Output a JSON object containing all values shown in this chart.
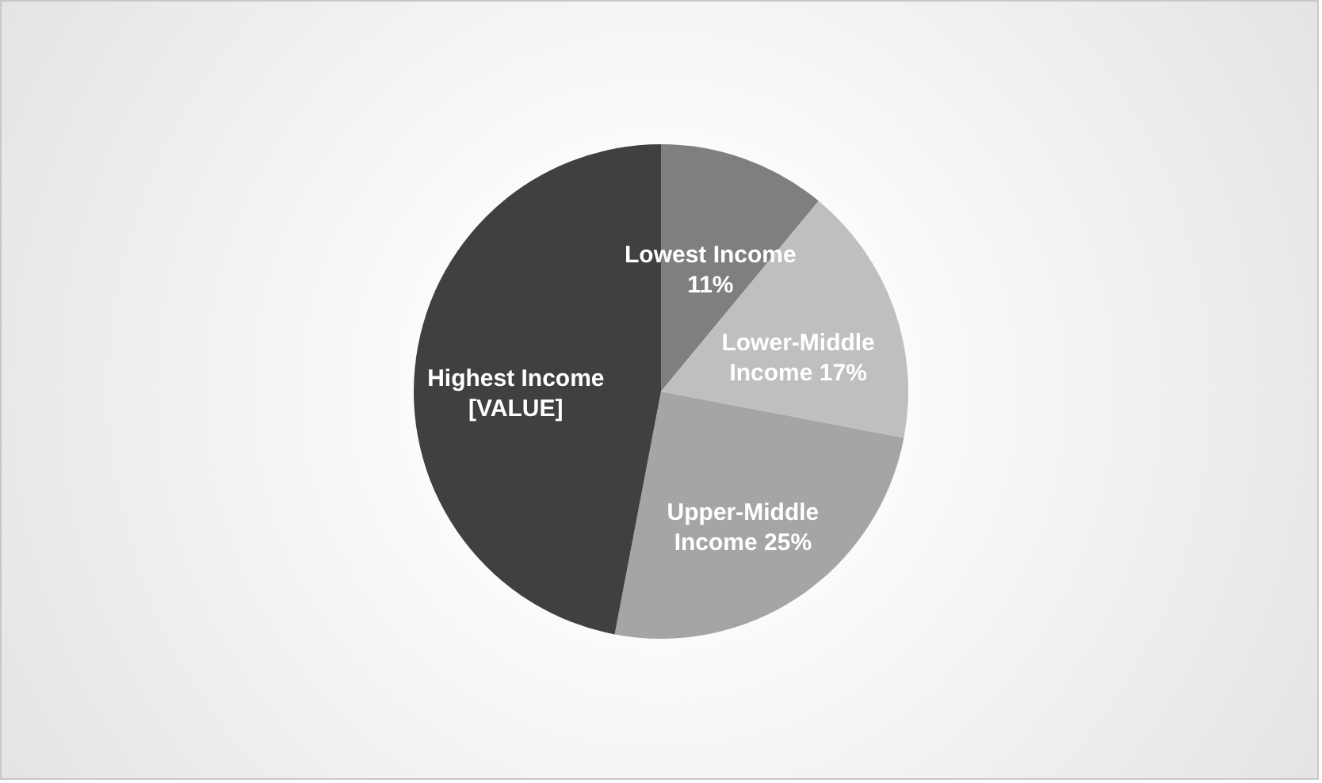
{
  "chart_data": {
    "type": "pie",
    "categories": [
      "Lowest Income",
      "Lower-Middle Income",
      "Upper-Middle Income",
      "Highest Income"
    ],
    "values": [
      11,
      17,
      25,
      47
    ],
    "colors": [
      "#7f7f7f",
      "#bfbfbf",
      "#a5a5a5",
      "#404040"
    ],
    "value_labels": [
      "11%",
      "17%",
      "25%",
      "[VALUE]"
    ],
    "legend": false
  }
}
